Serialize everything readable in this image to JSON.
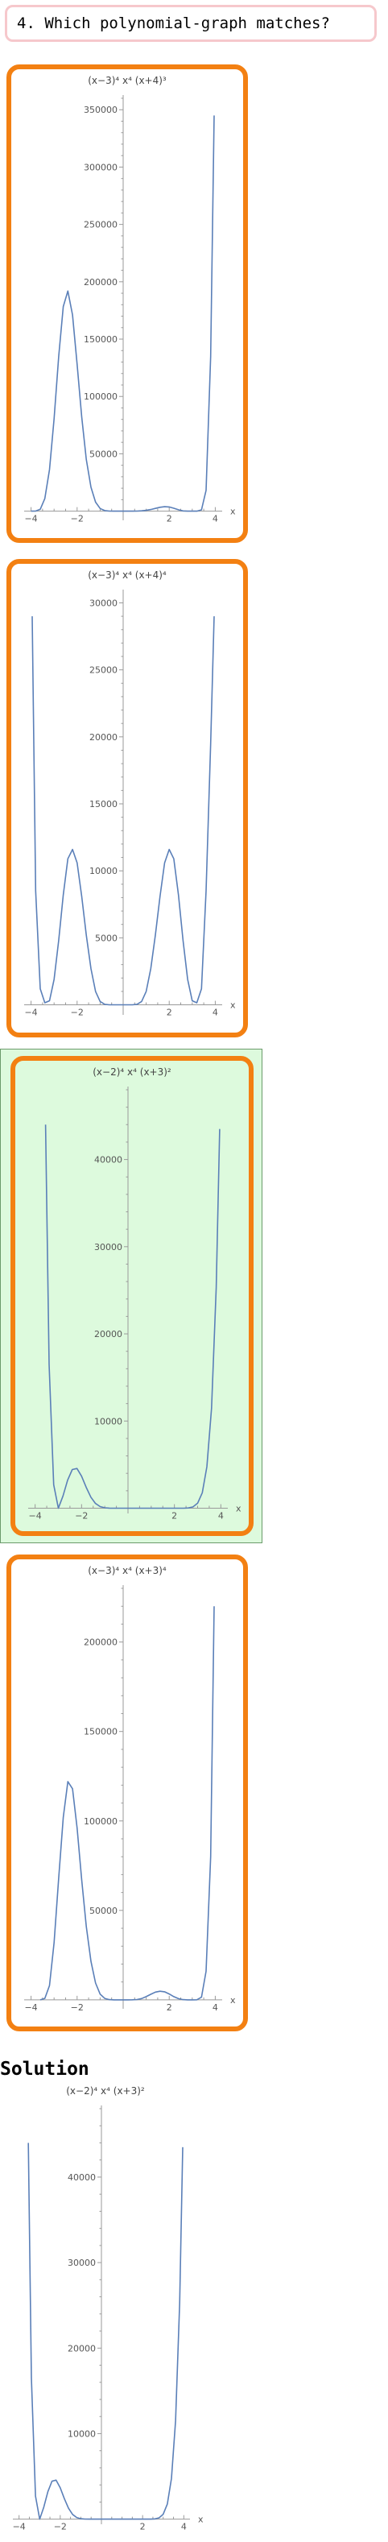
{
  "question": {
    "text": "4. Which polynomial-graph matches?"
  },
  "solution": {
    "label": "Solution"
  },
  "colors": {
    "option_border": "#f38012",
    "correct_background": "#ddfadd",
    "curve": "#5a7fb8",
    "question_border": "#f6c8cc"
  },
  "chart_data": [
    {
      "id": "option-1",
      "type": "line",
      "title": "(x−3)⁴ x⁴ (x+4)³",
      "xlabel": "x",
      "ylabel": "",
      "xlim": [
        -4.3,
        4.3
      ],
      "ylim": [
        -8000,
        360000
      ],
      "x_ticks": [
        -4,
        -2,
        2,
        4
      ],
      "y_ticks": [
        50000,
        100000,
        150000,
        200000,
        250000,
        300000,
        350000
      ],
      "y_tick_labels": [
        "50000",
        "100000",
        "150000",
        "200000",
        "250000",
        "300000",
        "350000"
      ],
      "grid": false,
      "selected": false,
      "series": [
        {
          "x": [
            -4,
            -3.8,
            -3.6,
            -3.4,
            -3.2,
            -3,
            -2.8,
            -2.6,
            -2.4,
            -2.2,
            -2,
            -1.8,
            -1.6,
            -1.4,
            -1.2,
            -1,
            -0.8,
            -0.6,
            -0.4,
            -0.2,
            0,
            0.2,
            0.4,
            0.6,
            0.8,
            1,
            1.2,
            1.4,
            1.6,
            1.8,
            2,
            2.2,
            2.4,
            2.6,
            2.8,
            3,
            3.2,
            3.4,
            3.6,
            3.8,
            3.95
          ],
          "y": [
            0,
            44,
            1637,
            11002,
            36212,
            80621,
            134730,
            178420,
            191968,
            171050,
            128000,
            82223,
            45097,
            20840,
            7867,
            2304,
            475,
            57,
            3,
            0,
            0,
            0,
            12,
            76,
            275,
            704,
            1430,
            2386,
            3346,
            3891,
            3630,
            2545,
            1173,
            232,
            3,
            0,
            11,
            1133,
            18122,
            135000,
            345000
          ]
        }
      ]
    },
    {
      "id": "option-2",
      "type": "line",
      "title": "(x−3)⁴ x⁴ (x+4)⁴",
      "xlabel": "x",
      "ylabel": "",
      "xlim": [
        -4.3,
        4.3
      ],
      "ylim": [
        -750,
        30750
      ],
      "x_ticks": [
        -4,
        -2,
        2,
        4
      ],
      "y_ticks": [
        5000,
        10000,
        15000,
        20000,
        25000,
        30000
      ],
      "y_tick_labels": [
        "5000",
        "10000",
        "15000",
        "20000",
        "25000",
        "30000"
      ],
      "grid": false,
      "selected": false,
      "series": [
        {
          "x": [
            -3.95,
            -3.8,
            -3.6,
            -3.4,
            -3.2,
            -3,
            -2.8,
            -2.6,
            -2.4,
            -2.2,
            -2,
            -1.8,
            -1.6,
            -1.4,
            -1.2,
            -1,
            -0.8,
            -0.6,
            -0.4,
            -0.2,
            0,
            0.2,
            0.4,
            0.6,
            0.8,
            1,
            1.2,
            1.4,
            1.6,
            1.8,
            2,
            2.2,
            2.4,
            2.6,
            2.8,
            3,
            3.2,
            3.4,
            3.6,
            3.8,
            3.95
          ],
          "y": [
            29000,
            8500,
            1200,
            150,
            300,
            1900,
            4800,
            8200,
            10900,
            11600,
            10600,
            8100,
            5200,
            2700,
            1000,
            250,
            40,
            3,
            0,
            0,
            0,
            0,
            3,
            40,
            250,
            1000,
            2700,
            5200,
            8100,
            10600,
            11600,
            10900,
            8200,
            4800,
            1900,
            300,
            150,
            1200,
            8500,
            19500,
            29000
          ]
        }
      ]
    },
    {
      "id": "option-3",
      "type": "line",
      "title": "(x−2)⁴ x⁴ (x+3)²",
      "xlabel": "x",
      "ylabel": "",
      "xlim": [
        -4.3,
        4.3
      ],
      "ylim": [
        -600,
        48000
      ],
      "x_ticks": [
        -4,
        -2,
        2,
        4
      ],
      "y_ticks": [
        10000,
        20000,
        30000,
        40000
      ],
      "y_tick_labels": [
        "10000",
        "20000",
        "30000",
        "40000"
      ],
      "grid": false,
      "selected": true,
      "series": [
        {
          "x": [
            -3.55,
            -3.4,
            -3.2,
            -3,
            -2.8,
            -2.6,
            -2.4,
            -2.2,
            -2,
            -1.8,
            -1.6,
            -1.4,
            -1.2,
            -1,
            -0.8,
            -0.6,
            -0.4,
            -0.2,
            0,
            0.2,
            0.4,
            0.6,
            0.8,
            1,
            1.2,
            1.4,
            1.6,
            1.8,
            2,
            2.2,
            2.4,
            2.6,
            2.8,
            3,
            3.2,
            3.4,
            3.6,
            3.8,
            3.95
          ],
          "y": [
            44000,
            16500,
            2700,
            0,
            1410,
            3220,
            4440,
            4560,
            3680,
            2390,
            1271,
            549,
            188,
            45.6,
            9.9,
            0.85,
            0.03,
            0,
            0,
            0,
            0.14,
            0.78,
            1.86,
            2.6,
            2.4,
            1.34,
            0.36,
            0.028,
            0,
            0.06,
            2.7,
            28,
            149,
            570,
            1770,
            4760,
            11480,
            25300,
            43500
          ]
        }
      ]
    },
    {
      "id": "option-4",
      "type": "line",
      "title": "(x−3)⁴ x⁴ (x+3)⁴",
      "xlabel": "x",
      "ylabel": "",
      "xlim": [
        -4.3,
        4.3
      ],
      "ylim": [
        -5000,
        230000
      ],
      "x_ticks": [
        -4,
        -2,
        2,
        4
      ],
      "y_ticks": [
        50000,
        100000,
        150000,
        200000
      ],
      "y_tick_labels": [
        "50000",
        "100000",
        "150000",
        "200000"
      ],
      "grid": false,
      "selected": false,
      "series": [
        {
          "x": [
            -3.6,
            -3.4,
            -3.2,
            -3,
            -2.8,
            -2.6,
            -2.4,
            -2.2,
            -2,
            -1.8,
            -1.6,
            -1.4,
            -1.2,
            -1,
            -0.8,
            -0.6,
            -0.4,
            -0.2,
            0,
            0.2,
            0.4,
            0.6,
            0.8,
            1,
            1.2,
            1.4,
            1.6,
            1.8,
            2,
            2.2,
            2.4,
            2.6,
            2.8,
            3,
            3.2,
            3.4,
            3.6,
            3.8,
            3.95
          ],
          "y": [
            0,
            800,
            8000,
            32000,
            68000,
            102000,
            122000,
            118000,
            96000,
            67000,
            41000,
            21500,
            9400,
            3200,
            800,
            130,
            10,
            0,
            0,
            0,
            20,
            180,
            700,
            1800,
            3100,
            4300,
            4800,
            4500,
            3300,
            1800,
            650,
            130,
            10,
            0,
            20,
            1500,
            16000,
            80000,
            220000
          ]
        }
      ]
    },
    {
      "id": "solution",
      "type": "line",
      "title": "(x−2)⁴ x⁴ (x+3)²",
      "xlabel": "x",
      "ylabel": "",
      "xlim": [
        -4.3,
        4.3
      ],
      "ylim": [
        -600,
        48000
      ],
      "x_ticks": [
        -4,
        -2,
        2,
        4
      ],
      "y_ticks": [
        10000,
        20000,
        30000,
        40000
      ],
      "y_tick_labels": [
        "10000",
        "20000",
        "30000",
        "40000"
      ],
      "grid": false,
      "selected": false,
      "series": [
        {
          "x": [
            -3.55,
            -3.4,
            -3.2,
            -3,
            -2.8,
            -2.6,
            -2.4,
            -2.2,
            -2,
            -1.8,
            -1.6,
            -1.4,
            -1.2,
            -1,
            -0.8,
            -0.6,
            -0.4,
            -0.2,
            0,
            0.2,
            0.4,
            0.6,
            0.8,
            1,
            1.2,
            1.4,
            1.6,
            1.8,
            2,
            2.2,
            2.4,
            2.6,
            2.8,
            3,
            3.2,
            3.4,
            3.6,
            3.8,
            3.95
          ],
          "y": [
            44000,
            16500,
            2700,
            0,
            1410,
            3220,
            4440,
            4560,
            3680,
            2390,
            1271,
            549,
            188,
            45.6,
            9.9,
            0.85,
            0.03,
            0,
            0,
            0,
            0.14,
            0.78,
            1.86,
            2.6,
            2.4,
            1.34,
            0.36,
            0.028,
            0,
            0.06,
            2.7,
            28,
            149,
            570,
            1770,
            4760,
            11480,
            25300,
            43500
          ]
        }
      ]
    }
  ]
}
